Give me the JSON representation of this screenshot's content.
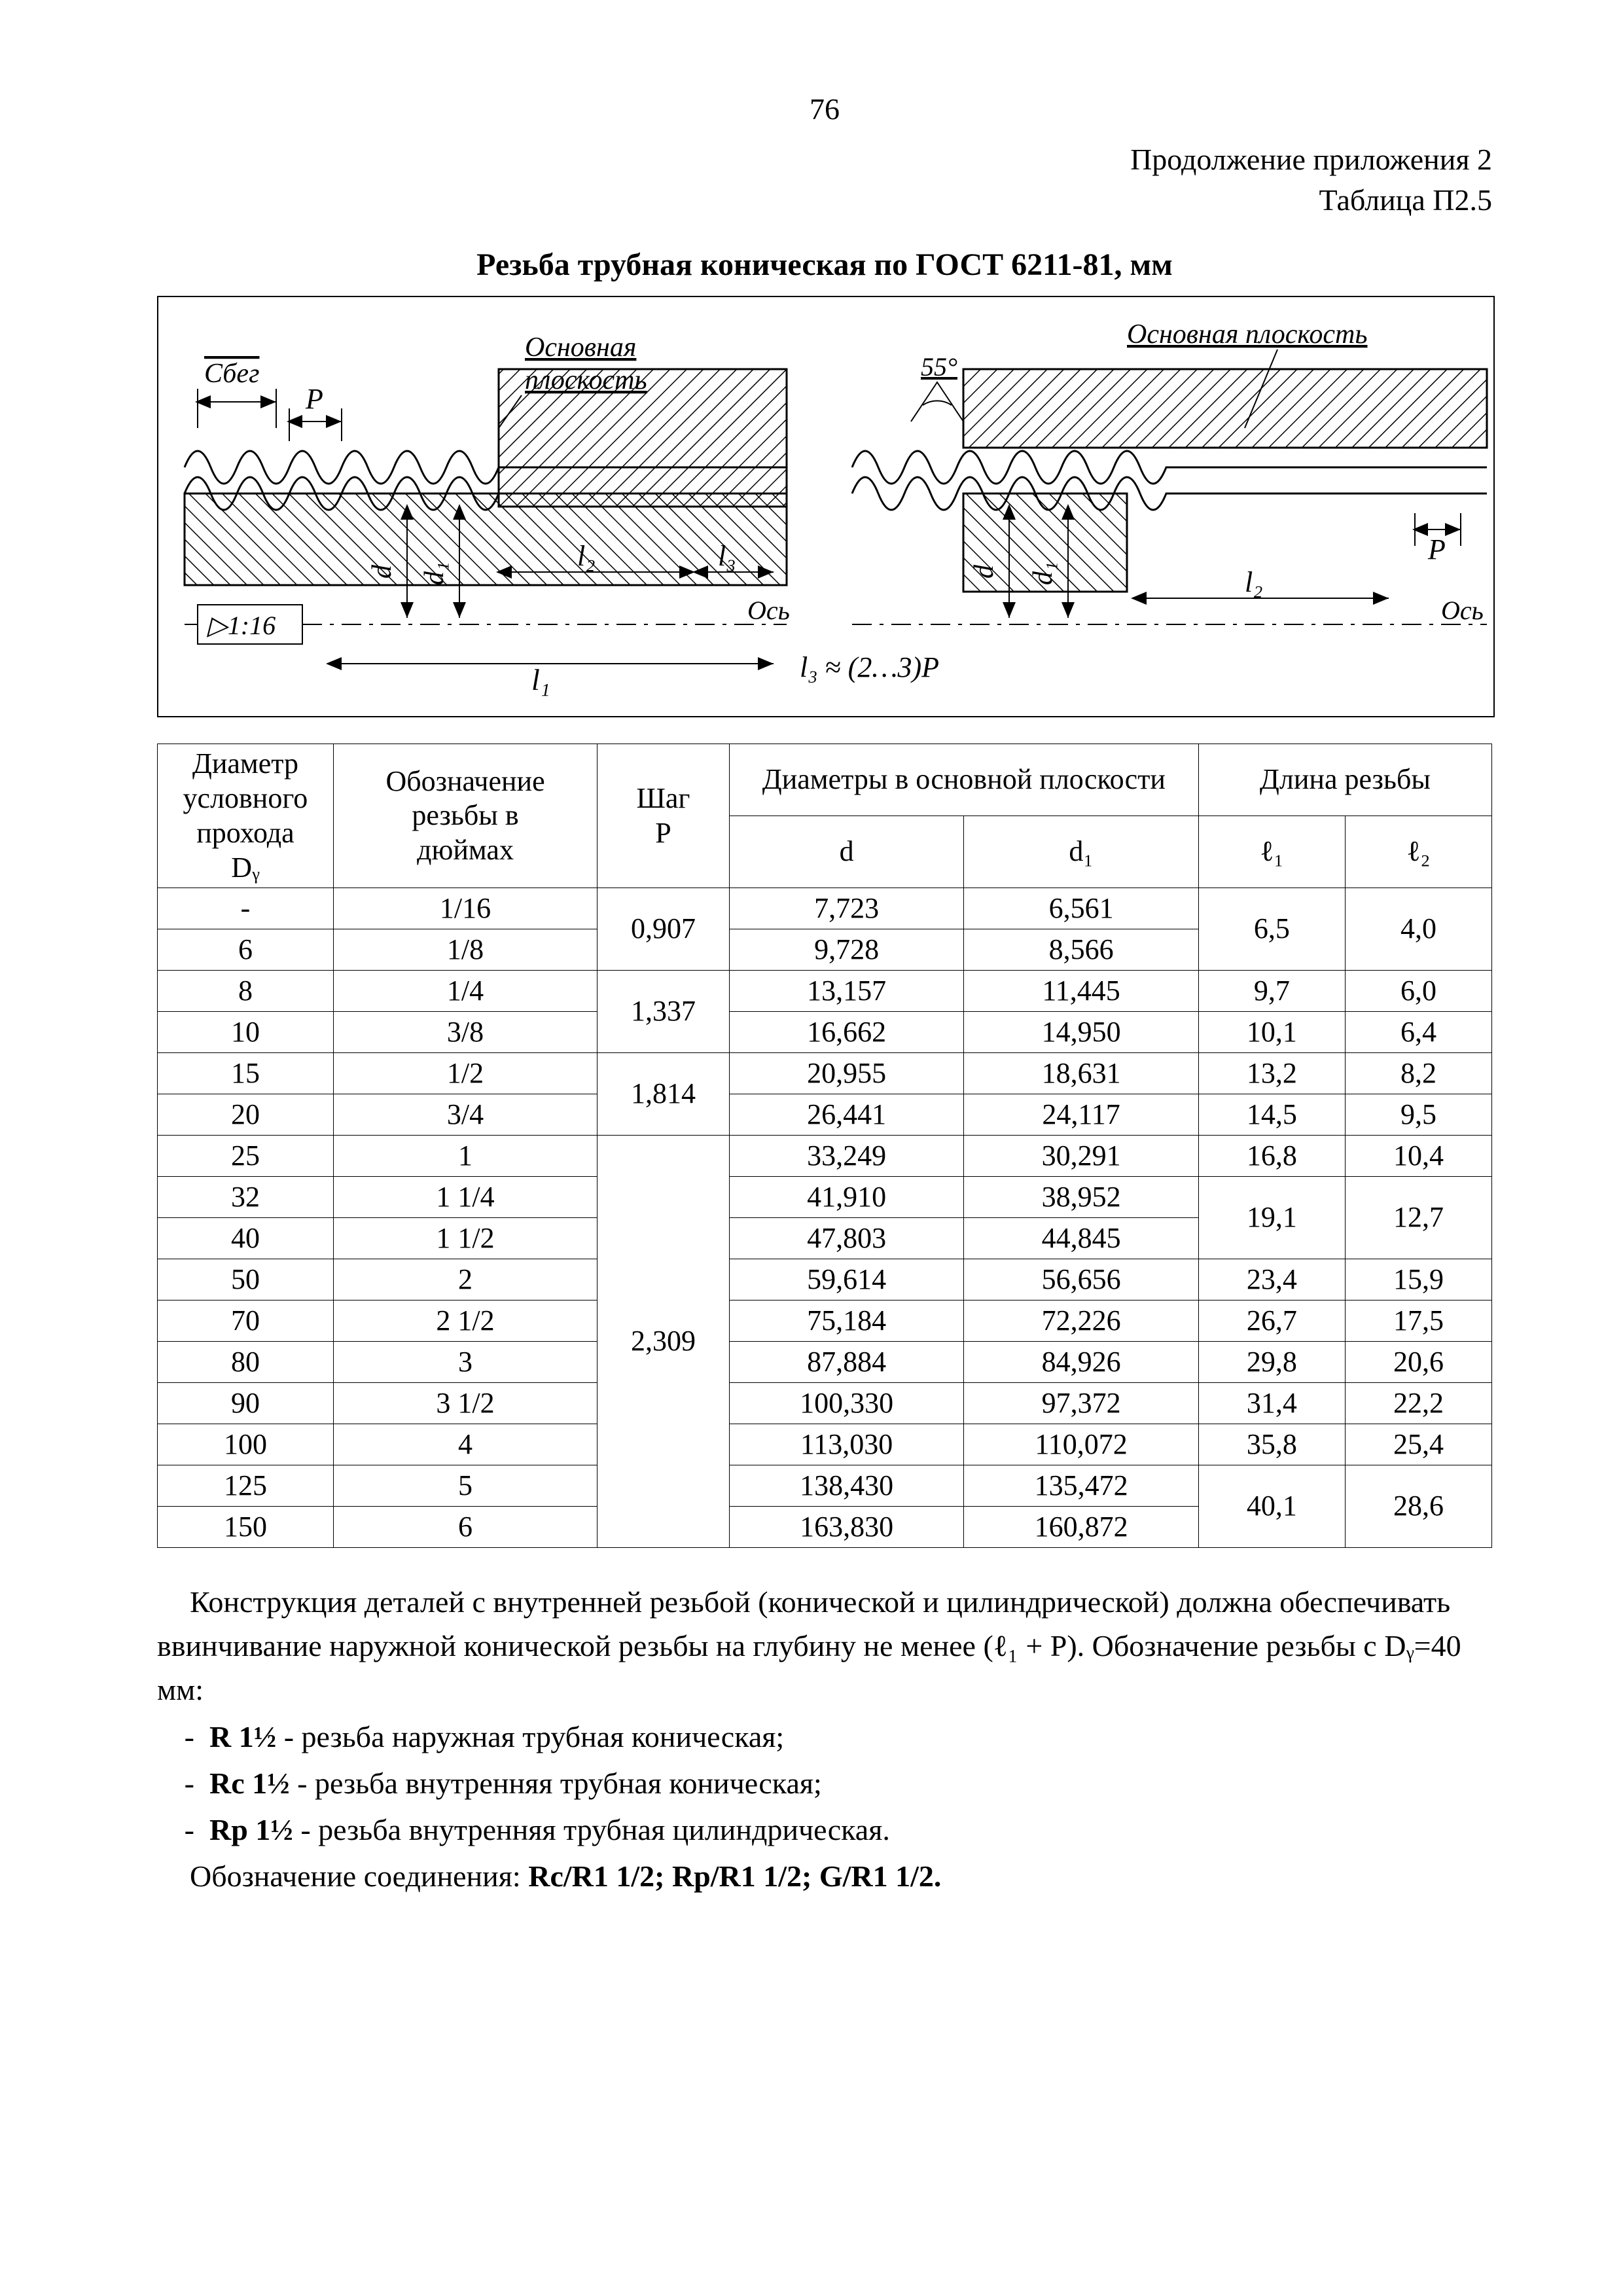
{
  "page_number": "76",
  "header": {
    "line1": "Продолжение приложения 2",
    "line2": "Таблица П2.5"
  },
  "title": "Резьба трубная коническая по ГОСТ 6211-81, мм",
  "diagram": {
    "labels": {
      "sbeq": "Сбег",
      "p": "P",
      "osnovnaya": "Основная",
      "ploskost": "плоскость",
      "osnovnaya_ploskost_r": "Основная плоскость",
      "angle": "55°",
      "taper": "▷1:16",
      "d": "d",
      "d1": "d₁",
      "l1": "l₁",
      "l2": "l₂",
      "l3": "l₃",
      "os": "Ось",
      "l3eq": "l₃ ≈ (2…3)P"
    }
  },
  "table": {
    "headers": {
      "dy_l1": "Диаметр",
      "dy_l2": "условного",
      "dy_l3": "прохода",
      "dy_l4": "Dᵧ",
      "name_l1": "Обозначение",
      "name_l2": "резьбы в",
      "name_l3": "дюймах",
      "p_l1": "Шаг",
      "p_l2": "P",
      "diam_group": "Диаметры в основной плоскости",
      "d": "d",
      "d1": "d₁",
      "len_group": "Длина резьбы",
      "l1": "ℓ₁",
      "l2": "ℓ₂"
    },
    "rows": [
      {
        "dy": "-",
        "name": "1/16",
        "p": "0,907",
        "d": "7,723",
        "d1": "6,561",
        "l1": "6,5",
        "l2": "4,0",
        "p_rowspan": 1
      },
      {
        "dy": "6",
        "name": "1/8",
        "p": "",
        "d": "9,728",
        "d1": "8,566",
        "l1": "",
        "l2": ""
      },
      {
        "dy": "8",
        "name": "1/4",
        "p": "1,337",
        "d": "13,157",
        "d1": "11,445",
        "l1": "9,7",
        "l2": "6,0",
        "p_rowspan": 1
      },
      {
        "dy": "10",
        "name": "3/8",
        "p": "",
        "d": "16,662",
        "d1": "14,950",
        "l1": "10,1",
        "l2": "6,4"
      },
      {
        "dy": "15",
        "name": "1/2",
        "p": "1,814",
        "d": "20,955",
        "d1": "18,631",
        "l1": "13,2",
        "l2": "8,2",
        "p_rowspan": 1
      },
      {
        "dy": "20",
        "name": "3/4",
        "p": "",
        "d": "26,441",
        "d1": "24,117",
        "l1": "14,5",
        "l2": "9,5"
      },
      {
        "dy": "25",
        "name": "1",
        "p": "2,309",
        "d": "33,249",
        "d1": "30,291",
        "l1": "16,8",
        "l2": "10,4",
        "p_rowspan": 10
      },
      {
        "dy": "32",
        "name": "1 1/4",
        "p": "",
        "d": "41,910",
        "d1": "38,952",
        "l1": "19,1",
        "l2": "12,7"
      },
      {
        "dy": "40",
        "name": "1 1/2",
        "p": "",
        "d": "47,803",
        "d1": "44,845",
        "l1": "",
        "l2": ""
      },
      {
        "dy": "50",
        "name": "2",
        "p": "",
        "d": "59,614",
        "d1": "56,656",
        "l1": "23,4",
        "l2": "15,9"
      },
      {
        "dy": "70",
        "name": "2 1/2",
        "p": "",
        "d": "75,184",
        "d1": "72,226",
        "l1": "26,7",
        "l2": "17,5"
      },
      {
        "dy": "80",
        "name": "3",
        "p": "",
        "d": "87,884",
        "d1": "84,926",
        "l1": "29,8",
        "l2": "20,6"
      },
      {
        "dy": "90",
        "name": "3 1/2",
        "p": "",
        "d": "100,330",
        "d1": "97,372",
        "l1": "31,4",
        "l2": "22,2"
      },
      {
        "dy": "100",
        "name": "4",
        "p": "",
        "d": "113,030",
        "d1": "110,072",
        "l1": "35,8",
        "l2": "25,4"
      },
      {
        "dy": "125",
        "name": "5",
        "p": "",
        "d": "138,430",
        "d1": "135,472",
        "l1": "40,1",
        "l2": "28,6"
      },
      {
        "dy": "150",
        "name": "6",
        "p": "",
        "d": "163,830",
        "d1": "160,872",
        "l1": "",
        "l2": ""
      }
    ],
    "p_groups": [
      {
        "start": 0,
        "span": 2,
        "value": "0,907"
      },
      {
        "start": 2,
        "span": 2,
        "value": "1,337"
      },
      {
        "start": 4,
        "span": 2,
        "value": "1,814"
      },
      {
        "start": 6,
        "span": 10,
        "value": "2,309"
      }
    ],
    "l1l2_groups": [
      {
        "start": 0,
        "span": 2,
        "l1": "6,5",
        "l2": "4,0"
      },
      {
        "start": 2,
        "span": 1,
        "l1": "9,7",
        "l2": "6,0"
      },
      {
        "start": 3,
        "span": 1,
        "l1": "10,1",
        "l2": "6,4"
      },
      {
        "start": 4,
        "span": 1,
        "l1": "13,2",
        "l2": "8,2"
      },
      {
        "start": 5,
        "span": 1,
        "l1": "14,5",
        "l2": "9,5"
      },
      {
        "start": 6,
        "span": 1,
        "l1": "16,8",
        "l2": "10,4"
      },
      {
        "start": 7,
        "span": 2,
        "l1": "19,1",
        "l2": "12,7"
      },
      {
        "start": 9,
        "span": 1,
        "l1": "23,4",
        "l2": "15,9"
      },
      {
        "start": 10,
        "span": 1,
        "l1": "26,7",
        "l2": "17,5"
      },
      {
        "start": 11,
        "span": 1,
        "l1": "29,8",
        "l2": "20,6"
      },
      {
        "start": 12,
        "span": 1,
        "l1": "31,4",
        "l2": "22,2"
      },
      {
        "start": 13,
        "span": 1,
        "l1": "35,8",
        "l2": "25,4"
      },
      {
        "start": 14,
        "span": 2,
        "l1": "40,1",
        "l2": "28,6"
      }
    ]
  },
  "notes": {
    "para1a": "Конструкция деталей с внутренней резьбой (конической и цилиндрической) должна обеспечивать ввинчивание наружной конической резьбы на глубину не менее (ℓ₁ + P). Обозначение резьбы с Dᵧ=40 мм:",
    "item1_b": "R 1½",
    "item1_t": " - резьба наружная трубная коническая;",
    "item2_b": "Rс 1½",
    "item2_t": " - резьба внутренняя трубная коническая;",
    "item3_b": "Rр 1½",
    "item3_t": " - резьба внутренняя трубная цилиндрическая.",
    "conn_label": "Обозначение соединения: ",
    "conn_b": "Rс/R1 1/2;   Rр/R1 1/2;   G/R1 1/2."
  }
}
